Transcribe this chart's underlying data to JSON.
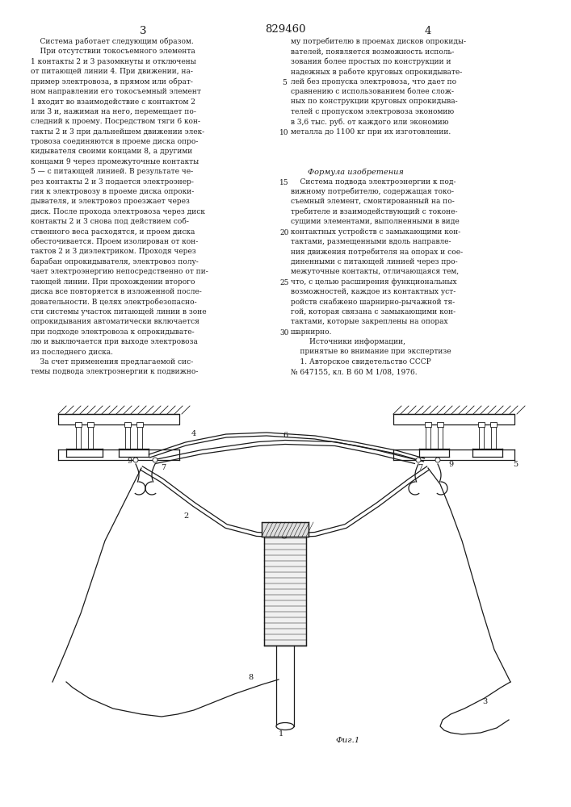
{
  "page_number": "829460",
  "page_left": "3",
  "page_right": "4",
  "background_color": "#ffffff",
  "text_color": "#1a1a1a",
  "left_column_lines": [
    "    Система работает следующим образом.",
    "    При отсутствии токосъемного элемента",
    "1 контакты 2 и 3 разомкнуты и отключены",
    "от питающей линии 4. При движении, на-",
    "пример электровоза, в прямом или обрат-",
    "ном направлении его токосъемный элемент",
    "1 входит во взаимодействие с контактом 2",
    "или 3 и, нажимая на него, перемещает по-",
    "следний к проему. Посредством тяги 6 кон-",
    "такты 2 и 3 при дальнейшем движении элек-",
    "тровоза соединяются в проеме диска опро-",
    "кидывателя своими концами 8, а другими",
    "концами 9 через промежуточные контакты",
    "5 — с питающей линией. В результате че-",
    "рез контакты 2 и 3 подается электроэнер-",
    "гия к электровозу в проеме диска опроки-",
    "дывателя, и электровоз проезжает через",
    "диск. После прохода электровоза через диск",
    "контакты 2 и 3 снова под действием соб-",
    "ственного веса расходятся, и проем диска",
    "обесточивается. Проем изолирован от кон-",
    "тактов 2 и 3 диэлектриком. Проходя через",
    "барабан опрокидывателя, электровоз полу-",
    "чает электроэнергию непосредственно от пи-",
    "тающей линии. При прохождении второго",
    "диска все повторяется в изложенной после-",
    "довательности. В целях электробезопасно-",
    "сти системы участок питающей линии в зоне",
    "опрокидывания автоматически включается",
    "при подходе электровоза к опрокидывате-",
    "лю и выключается при выходе электровоза",
    "из последнего диска.",
    "    За счет применения предлагаемой сис-",
    "темы подвода электроэнергии к подвижно-"
  ],
  "right_column_lines": [
    "му потребителю в проемах дисков опрокиды-",
    "вателей, появляется возможность исполь-",
    "зования более простых по конструкции и",
    "надежных в работе круговых опрокидывате-",
    "лей без пропуска электровоза, что дает по",
    "сравнению с использованием более слож-",
    "ных по конструкции круговых опрокидыва-",
    "телей с пропуском электровоза экономию",
    "в 3,6 тыс. руб. от каждого или экономию",
    "металла до 1100 кг при их изготовлении.",
    "",
    "",
    "",
    "",
    "    Система подвода электроэнергии к под-",
    "вижному потребителю, содержащая токо-",
    "съемный элемент, смонтированный на по-",
    "требителе и взаимодействующий с токоне-",
    "сущими элементами, выполненными в виде",
    "контактных устройств с замыкающими кон-",
    "тактами, размещенными вдоль направле-",
    "ния движения потребителя на опорах и сое-",
    "диненными с питающей линией через про-",
    "межуточные контакты, отличающаяся тем,",
    "что, с целью расширения функциональных",
    "возможностей, каждое из контактных уст-",
    "ройств снабжено шарнирно-рычажной тя-",
    "гой, которая связана с замыкающими кон-",
    "тактами, которые закреплены на опорах",
    "шарнирно.",
    "        Источники информации,",
    "    принятые во внимание при экспертизе",
    "    1. Авторское свидетельство СССР",
    "№ 647155, кл. В 60 М 1/08, 1976."
  ],
  "line_numbers_rows": [
    4,
    9,
    14,
    19,
    24,
    29
  ],
  "line_numbers_vals": [
    "5",
    "10",
    "15",
    "20",
    "25",
    "30"
  ],
  "formula_row": 13,
  "formula_text": "Формула изобретения",
  "fig_label": "Фиг.1"
}
